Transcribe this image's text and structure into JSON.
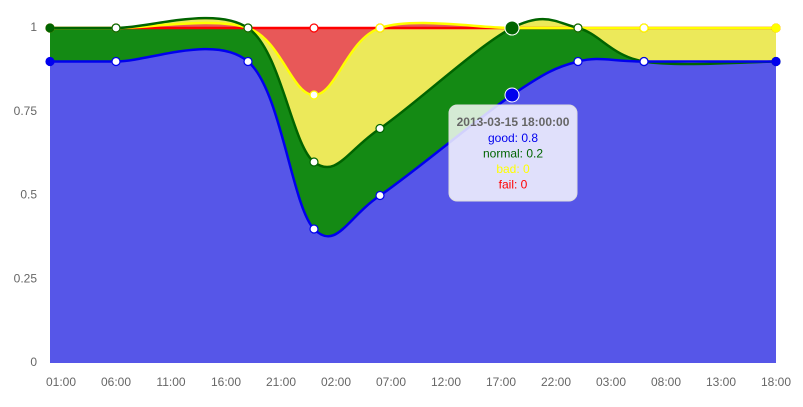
{
  "chart_data": {
    "type": "stacked-area",
    "x": [
      0,
      6,
      18,
      24,
      30,
      42,
      48,
      54,
      66
    ],
    "xlim": [
      0,
      66
    ],
    "xticks": [
      {
        "value": 1,
        "label": "01:00"
      },
      {
        "value": 6,
        "label": "06:00"
      },
      {
        "value": 11,
        "label": "11:00"
      },
      {
        "value": 16,
        "label": "16:00"
      },
      {
        "value": 21,
        "label": "21:00"
      },
      {
        "value": 26,
        "label": "02:00"
      },
      {
        "value": 31,
        "label": "07:00"
      },
      {
        "value": 36,
        "label": "12:00"
      },
      {
        "value": 41,
        "label": "17:00"
      },
      {
        "value": 46,
        "label": "22:00"
      },
      {
        "value": 51,
        "label": "03:00"
      },
      {
        "value": 56,
        "label": "08:00"
      },
      {
        "value": 61,
        "label": "13:00"
      },
      {
        "value": 66,
        "label": "18:00"
      }
    ],
    "ylim": [
      0,
      1
    ],
    "yticks": [
      0,
      0.25,
      0.5,
      0.75,
      1
    ],
    "series": [
      {
        "name": "good",
        "color": "#0000ee",
        "fill": "#5656e8",
        "values": [
          0.9,
          0.9,
          0.9,
          0.4,
          0.5,
          0.8,
          0.9,
          0.9,
          0.9
        ]
      },
      {
        "name": "normal",
        "color": "#006400",
        "fill": "#148a14",
        "values": [
          0.1,
          0.1,
          0.1,
          0.2,
          0.2,
          0.2,
          0.1,
          0,
          0
        ]
      },
      {
        "name": "bad",
        "color": "#ffff00",
        "fill": "#ece95a",
        "values": [
          0,
          0,
          0,
          0.2,
          0.3,
          0,
          0,
          0.1,
          0.1
        ]
      },
      {
        "name": "fail",
        "color": "#ff0000",
        "fill": "#e85858",
        "values": [
          0,
          0,
          0,
          0.2,
          0,
          0,
          0,
          0,
          0
        ]
      }
    ],
    "tooltip": {
      "title": "2013-03-15 18:00:00",
      "lines": [
        "good: 0.8",
        "normal: 0.2",
        "bad: 0",
        "fail: 0"
      ]
    }
  }
}
